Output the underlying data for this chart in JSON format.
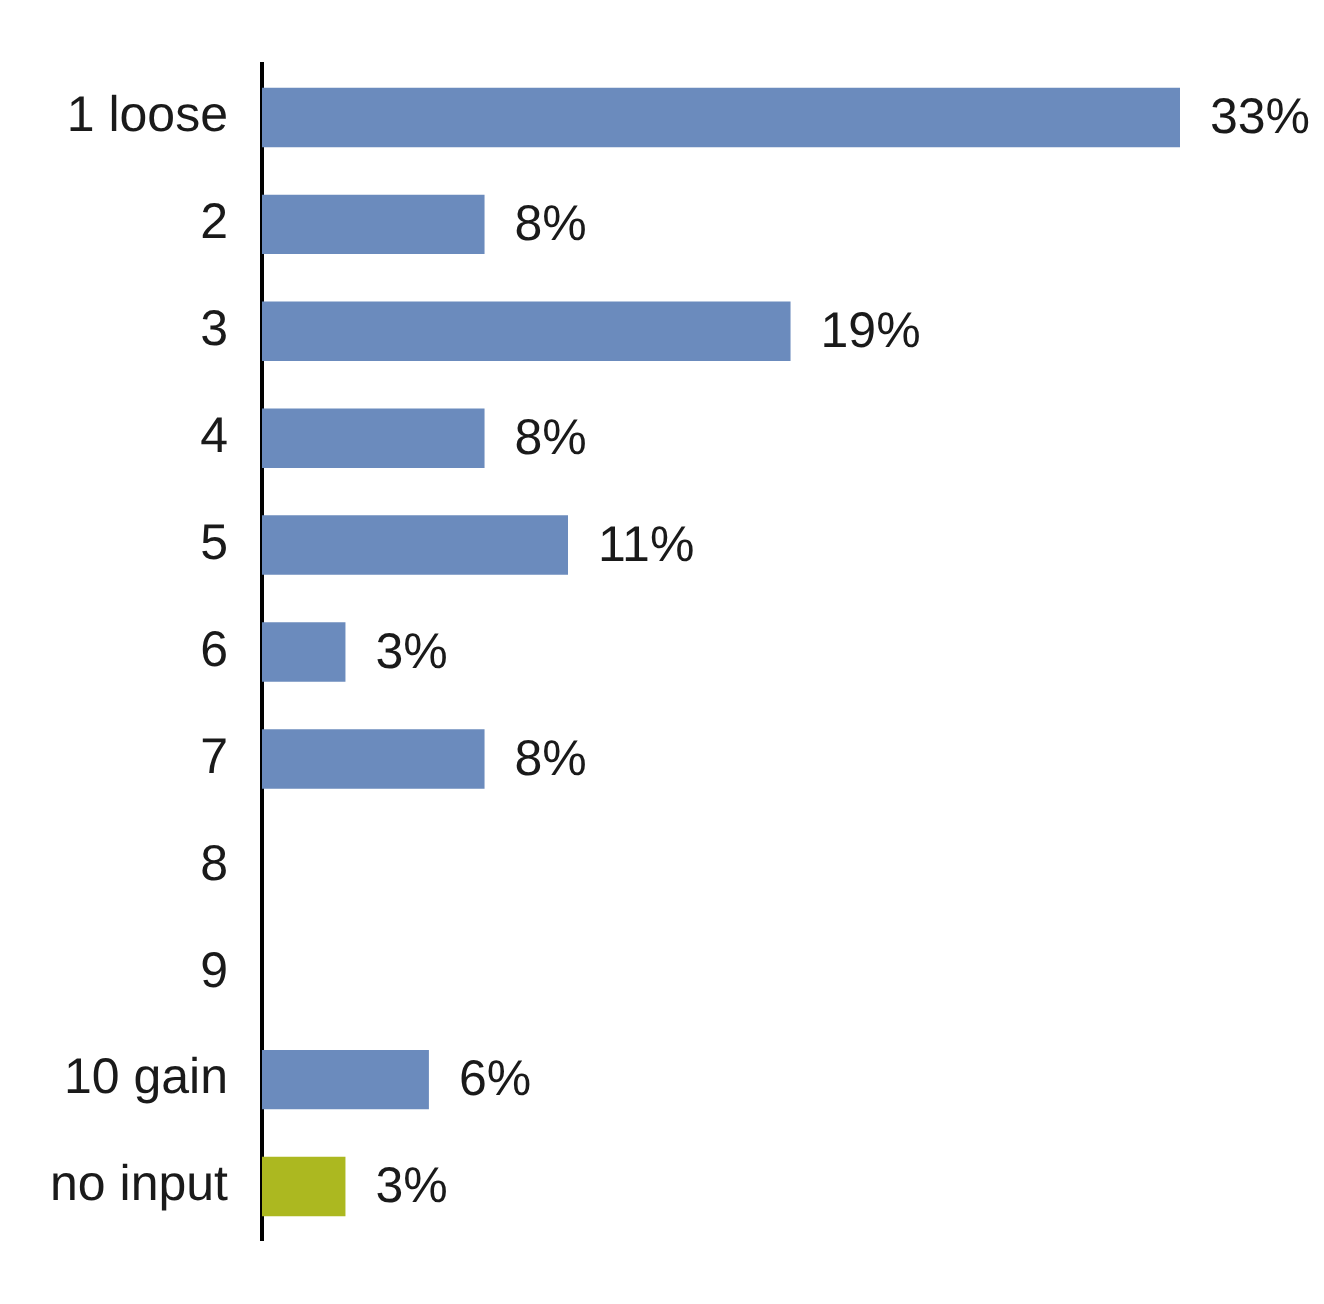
{
  "chart_data": {
    "type": "bar",
    "orientation": "horizontal",
    "tick_labels": "y",
    "categories": [
      "1 loose",
      "2",
      "3",
      "4",
      "5",
      "6",
      "7",
      "8",
      "9",
      "10 gain",
      "no input"
    ],
    "values": [
      33,
      8,
      19,
      8,
      11,
      3,
      8,
      null,
      null,
      6,
      3
    ],
    "colors": [
      "#6b8bbd",
      "#6b8bbd",
      "#6b8bbd",
      "#6b8bbd",
      "#6b8bbd",
      "#6b8bbd",
      "#6b8bbd",
      "#6b8bbd",
      "#6b8bbd",
      "#6b8bbd",
      "#acb820"
    ],
    "value_labels": [
      "33%",
      "8%",
      "19%",
      "8%",
      "11%",
      "3%",
      "8%",
      null,
      null,
      "6%",
      "3%"
    ]
  }
}
